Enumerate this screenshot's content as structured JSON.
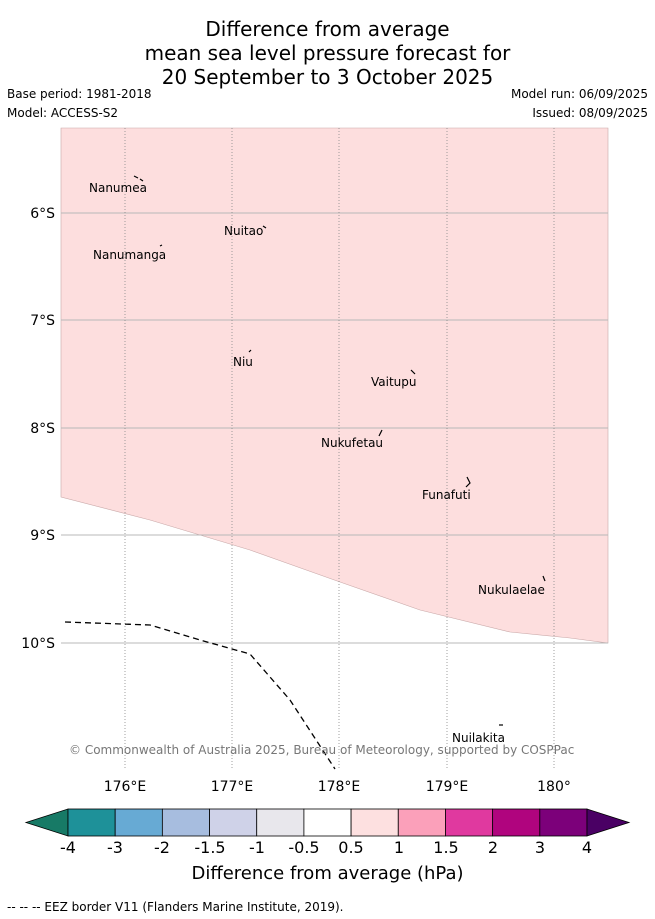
{
  "title": {
    "line1": "Difference from average",
    "line2": "mean sea level pressure forecast for",
    "line3": "20 September to 3 October 2025"
  },
  "meta": {
    "base_period": "Base period: 1981-2018",
    "model": "Model: ACCESS-S2",
    "model_run": "Model run: 06/09/2025",
    "issued": "Issued: 08/09/2025"
  },
  "map": {
    "lon_range": [
      175.5,
      180.5
    ],
    "lat_range": [
      -11.3,
      -5.4
    ],
    "lon_ticks": [
      "176°E",
      "177°E",
      "178°E",
      "179°E",
      "180°"
    ],
    "lat_ticks": [
      "6°S",
      "7°S",
      "8°S",
      "9°S",
      "10°S"
    ],
    "shaded_color": "#fddede",
    "places": [
      "Nanumea",
      "Nuitao",
      "Nanumanga",
      "Niu",
      "Vaitupu",
      "Nukufetau",
      "Funafuti",
      "Nukulaelae",
      "Nuilakita"
    ],
    "copyright": "© Commonwealth of Australia 2025, Bureau of Meteorology, supported by COSPPac"
  },
  "colorbar": {
    "labels": [
      "-4",
      "-3",
      "-2",
      "-1.5",
      "-1",
      "-0.5",
      "0.5",
      "1",
      "1.5",
      "2",
      "3",
      "4"
    ],
    "colors": [
      "#1e9199",
      "#67aad4",
      "#a7bddf",
      "#cfd2e8",
      "#e8e7ec",
      "#ffffff",
      "#fde0e0",
      "#fba0ba",
      "#e0399f",
      "#b0047e",
      "#7c007a"
    ],
    "low_color": "#177a66",
    "high_color": "#4a0064",
    "title": "Difference from average (hPa)"
  },
  "footer": "-- -- -- EEZ border V11 (Flanders Marine Institute, 2019)."
}
